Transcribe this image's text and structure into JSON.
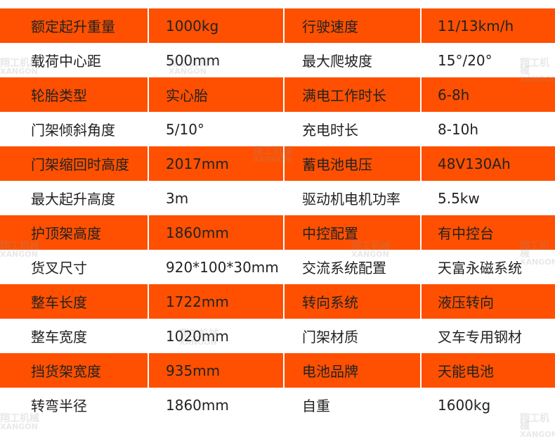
{
  "colors": {
    "accent": "#fe5000",
    "text": "#222222",
    "row_alt": "#ffffff"
  },
  "watermark": {
    "brand_cn": "翔工机械",
    "brand_en": "XANGON"
  },
  "rows": [
    {
      "k1": "额定起升重量",
      "v1": "1000kg",
      "k2": "行驶速度",
      "v2": "11/13km/h"
    },
    {
      "k1": "载荷中心距",
      "v1": "500mm",
      "k2": "最大爬坡度",
      "v2": "15°/20°"
    },
    {
      "k1": "轮胎类型",
      "v1": "实心胎",
      "k2": "满电工作时长",
      "v2": "6-8h"
    },
    {
      "k1": "门架倾斜角度",
      "v1": "5/10°",
      "k2": "充电时长",
      "v2": "8-10h"
    },
    {
      "k1": "门架缩回时高度",
      "v1": "2017mm",
      "k2": "蓄电池电压",
      "v2": "48V130Ah"
    },
    {
      "k1": "最大起升高度",
      "v1": "3m",
      "k2": "驱动机电机功率",
      "v2": "5.5kw"
    },
    {
      "k1": "护顶架高度",
      "v1": "1860mm",
      "k2": "中控配置",
      "v2": "有中控台"
    },
    {
      "k1": "货叉尺寸",
      "v1": "920*100*30mm",
      "k2": "交流系统配置",
      "v2": "天富永磁系统"
    },
    {
      "k1": "整车长度",
      "v1": "1722mm",
      "k2": "转向系统",
      "v2": "液压转向"
    },
    {
      "k1": "整车宽度",
      "v1": "1020mm",
      "k2": "门架材质",
      "v2": "叉车专用钢材"
    },
    {
      "k1": "挡货架宽度",
      "v1": "935mm",
      "k2": "电池品牌",
      "v2": "天能电池"
    },
    {
      "k1": "转弯半径",
      "v1": "1860mm",
      "k2": "自重",
      "v2": "1600kg"
    }
  ]
}
